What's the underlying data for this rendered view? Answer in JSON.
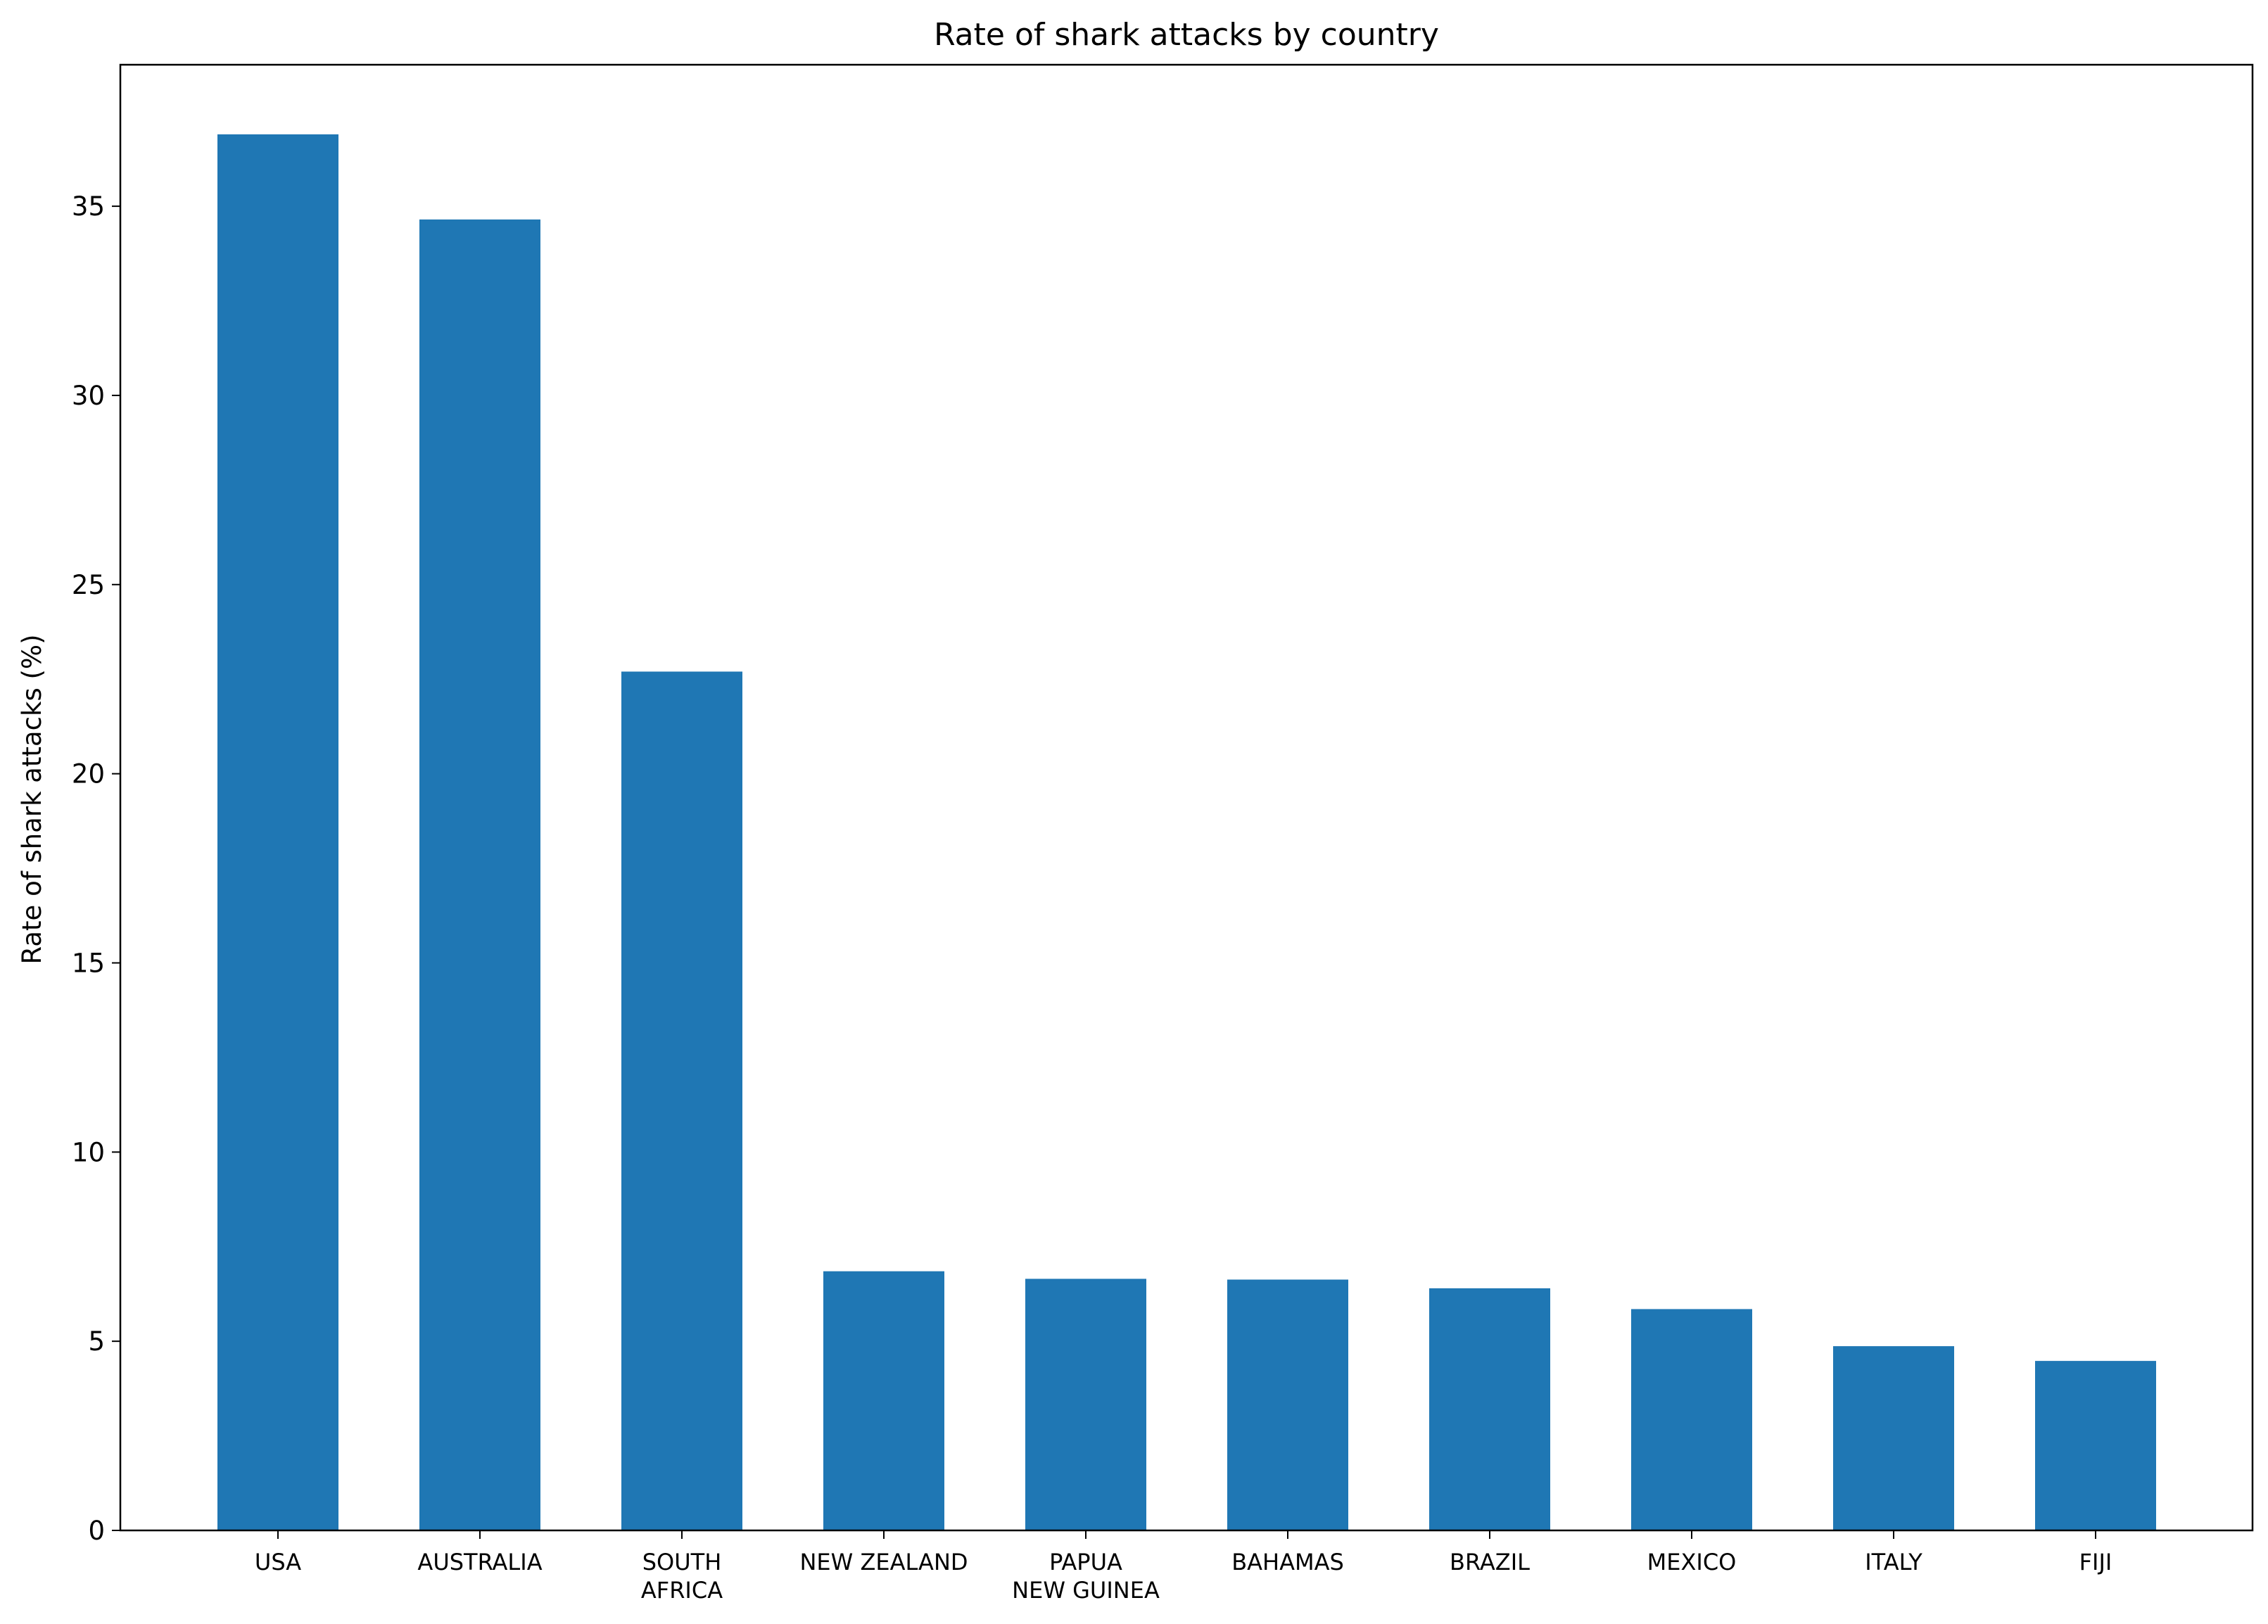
{
  "chart_data": {
    "type": "bar",
    "title": "Rate of shark attacks by country",
    "xlabel": "",
    "ylabel": "Rate of shark attacks (%)",
    "categories": [
      [
        "USA"
      ],
      [
        "AUSTRALIA"
      ],
      [
        "SOUTH",
        "AFRICA"
      ],
      [
        "NEW ZEALAND"
      ],
      [
        "PAPUA",
        "NEW GUINEA"
      ],
      [
        "BAHAMAS"
      ],
      [
        "BRAZIL"
      ],
      [
        "MEXICO"
      ],
      [
        "ITALY"
      ],
      [
        "FIJI"
      ]
    ],
    "values": [
      36.9,
      34.65,
      22.7,
      6.85,
      6.65,
      6.63,
      6.4,
      5.85,
      4.87,
      4.48
    ],
    "ylim": [
      0,
      38.74
    ],
    "yticks": [
      0,
      5,
      10,
      15,
      20,
      25,
      30,
      35
    ],
    "grid": false,
    "colors": {
      "bar": "#1f77b4"
    }
  }
}
